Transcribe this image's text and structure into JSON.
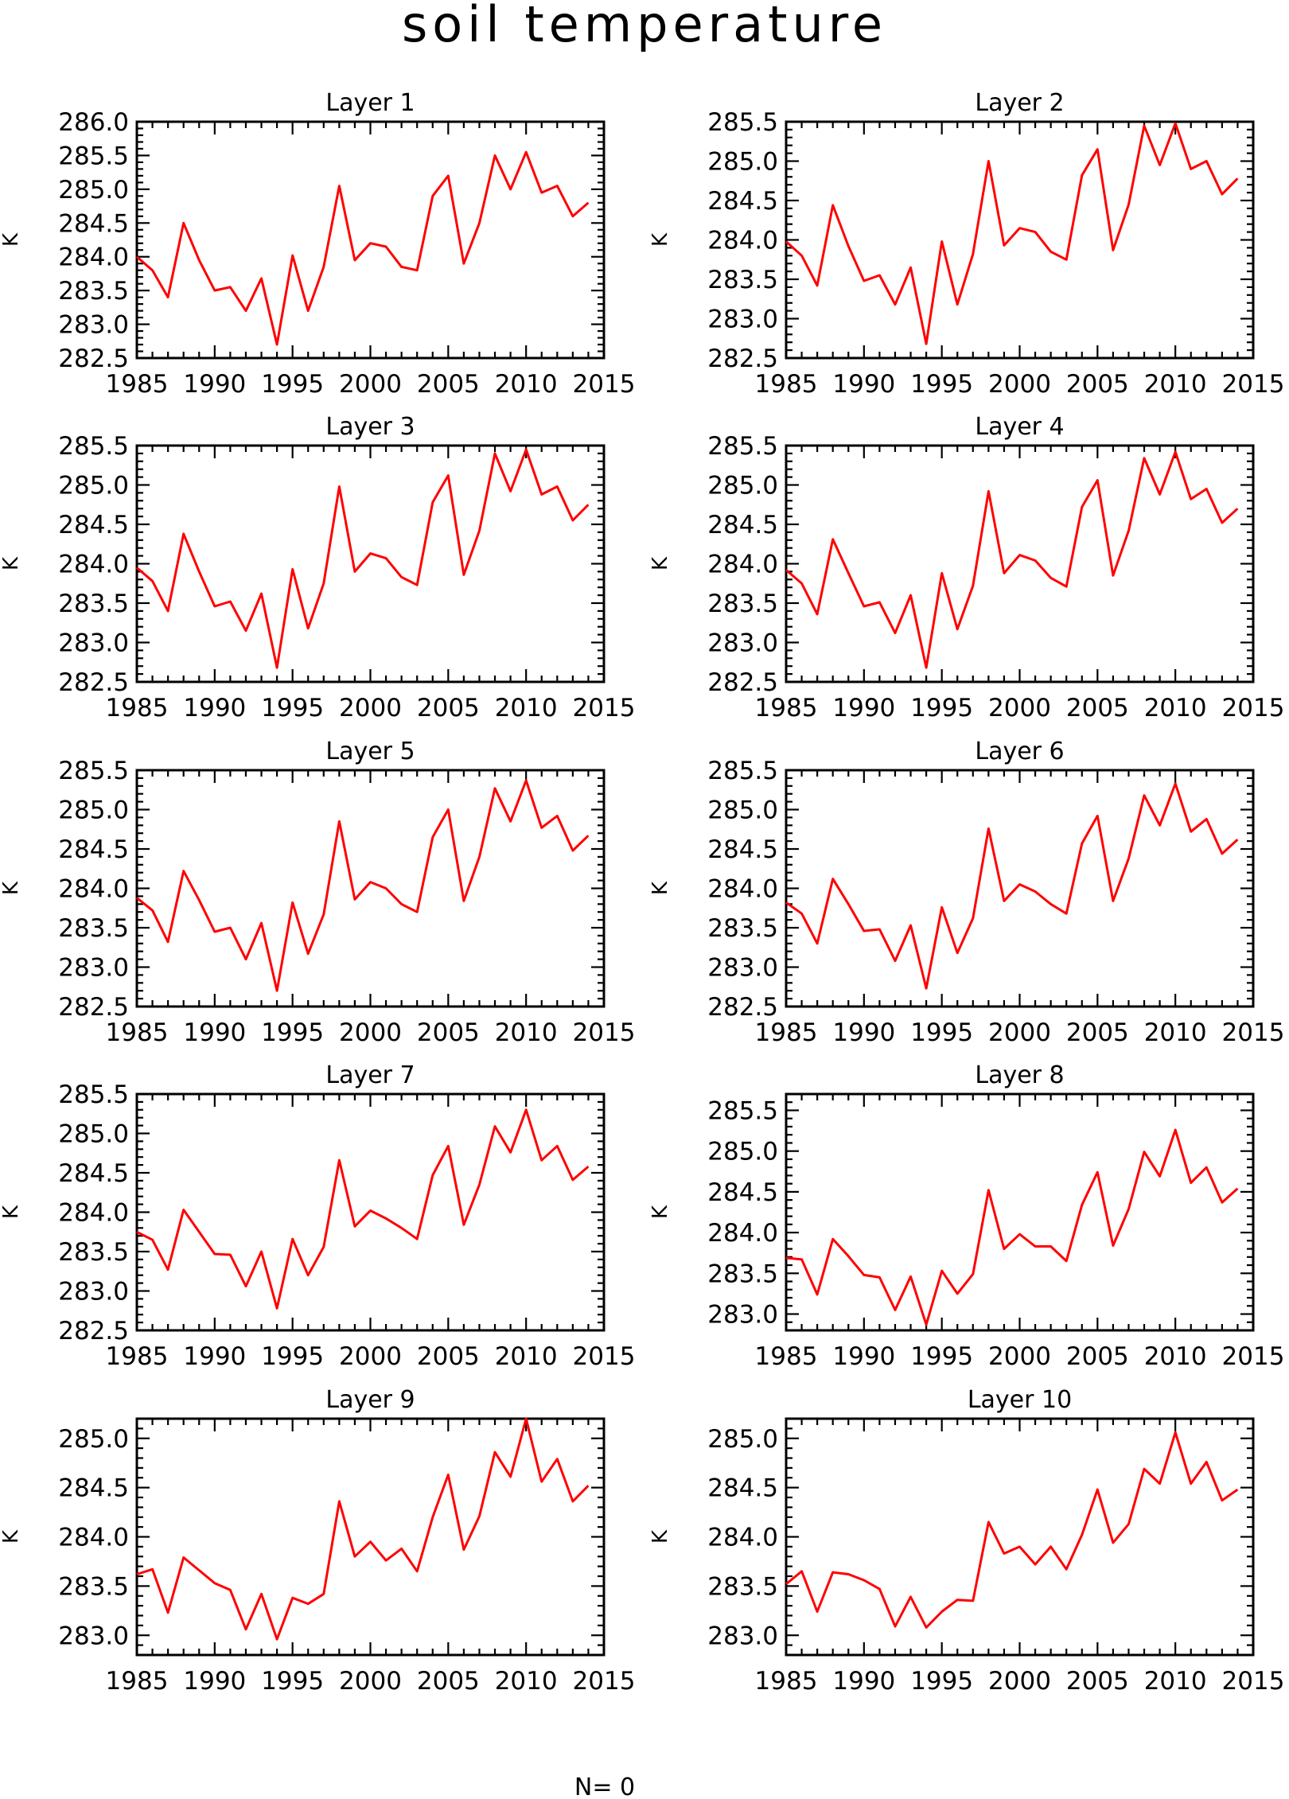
{
  "title": "soil temperature",
  "footer_note": "N= 0",
  "colors": {
    "series": "#ff0000",
    "axes": "#000000",
    "background": "#ffffff"
  },
  "years": [
    1985,
    1986,
    1987,
    1988,
    1989,
    1990,
    1991,
    1992,
    1993,
    1994,
    1995,
    1996,
    1997,
    1998,
    1999,
    2000,
    2001,
    2002,
    2003,
    2004,
    2005,
    2006,
    2007,
    2008,
    2009,
    2010,
    2011,
    2012,
    2013,
    2014
  ],
  "chart_data": [
    {
      "type": "line",
      "title": "Layer 1",
      "ylabel": "K",
      "xlim": [
        1985,
        2015
      ],
      "ylim": [
        282.5,
        286.0
      ],
      "xticks": [
        1985,
        1990,
        1995,
        2000,
        2005,
        2010,
        2015
      ],
      "xtick_labels": [
        "1985",
        "1990",
        "1995",
        "2000",
        "2005",
        "2010",
        "2015"
      ],
      "yticks": [
        282.5,
        283.0,
        283.5,
        284.0,
        284.5,
        285.0,
        285.5,
        286.0
      ],
      "ytick_labels": [
        "282.5",
        "283.0",
        "283.5",
        "284.0",
        "284.5",
        "285.0",
        "285.5",
        "286.0"
      ],
      "values": [
        284.0,
        283.8,
        283.4,
        284.5,
        283.95,
        283.5,
        283.55,
        283.2,
        283.68,
        282.7,
        284.02,
        283.2,
        283.85,
        285.05,
        283.95,
        284.2,
        284.15,
        283.85,
        283.8,
        284.9,
        285.2,
        283.9,
        284.5,
        285.5,
        285.0,
        285.55,
        284.95,
        285.05,
        284.6,
        284.8
      ]
    },
    {
      "type": "line",
      "title": "Layer 2",
      "ylabel": "K",
      "xlim": [
        1985,
        2015
      ],
      "ylim": [
        282.5,
        285.5
      ],
      "xticks": [
        1985,
        1990,
        1995,
        2000,
        2005,
        2010,
        2015
      ],
      "xtick_labels": [
        "1985",
        "1990",
        "1995",
        "2000",
        "2005",
        "2010",
        "2015"
      ],
      "yticks": [
        282.5,
        283.0,
        283.5,
        284.0,
        284.5,
        285.0,
        285.5
      ],
      "ytick_labels": [
        "282.5",
        "283.0",
        "283.5",
        "284.0",
        "284.5",
        "285.0",
        "285.5"
      ],
      "values": [
        283.98,
        283.8,
        283.42,
        284.44,
        283.92,
        283.48,
        283.55,
        283.18,
        283.65,
        282.68,
        283.98,
        283.18,
        283.82,
        285.0,
        283.93,
        284.15,
        284.1,
        283.85,
        283.75,
        284.82,
        285.15,
        283.87,
        284.45,
        285.45,
        284.95,
        285.48,
        284.9,
        285.0,
        284.58,
        284.78
      ]
    },
    {
      "type": "line",
      "title": "Layer 3",
      "ylabel": "K",
      "xlim": [
        1985,
        2015
      ],
      "ylim": [
        282.5,
        285.5
      ],
      "xticks": [
        1985,
        1990,
        1995,
        2000,
        2005,
        2010,
        2015
      ],
      "xtick_labels": [
        "1985",
        "1990",
        "1995",
        "2000",
        "2005",
        "2010",
        "2015"
      ],
      "yticks": [
        282.5,
        283.0,
        283.5,
        284.0,
        284.5,
        285.0,
        285.5
      ],
      "ytick_labels": [
        "282.5",
        "283.0",
        "283.5",
        "284.0",
        "284.5",
        "285.0",
        "285.5"
      ],
      "values": [
        283.95,
        283.78,
        283.4,
        284.38,
        283.9,
        283.46,
        283.52,
        283.15,
        283.62,
        282.68,
        283.93,
        283.18,
        283.75,
        284.98,
        283.9,
        284.13,
        284.07,
        283.83,
        283.73,
        284.78,
        285.12,
        283.86,
        284.42,
        285.4,
        284.92,
        285.45,
        284.88,
        284.98,
        284.55,
        284.75
      ]
    },
    {
      "type": "line",
      "title": "Layer 4",
      "ylabel": "K",
      "xlim": [
        1985,
        2015
      ],
      "ylim": [
        282.5,
        285.5
      ],
      "xticks": [
        1985,
        1990,
        1995,
        2000,
        2005,
        2010,
        2015
      ],
      "xtick_labels": [
        "1985",
        "1990",
        "1995",
        "2000",
        "2005",
        "2010",
        "2015"
      ],
      "yticks": [
        282.5,
        283.0,
        283.5,
        284.0,
        284.5,
        285.0,
        285.5
      ],
      "ytick_labels": [
        "282.5",
        "283.0",
        "283.5",
        "284.0",
        "284.5",
        "285.0",
        "285.5"
      ],
      "values": [
        283.92,
        283.75,
        283.36,
        284.31,
        283.88,
        283.46,
        283.51,
        283.12,
        283.6,
        282.68,
        283.88,
        283.17,
        283.72,
        284.92,
        283.88,
        284.11,
        284.04,
        283.82,
        283.71,
        284.72,
        285.06,
        283.85,
        284.42,
        285.34,
        284.88,
        285.42,
        284.82,
        284.95,
        284.52,
        284.7
      ]
    },
    {
      "type": "line",
      "title": "Layer 5",
      "ylabel": "K",
      "xlim": [
        1985,
        2015
      ],
      "ylim": [
        282.5,
        285.5
      ],
      "xticks": [
        1985,
        1990,
        1995,
        2000,
        2005,
        2010,
        2015
      ],
      "xtick_labels": [
        "1985",
        "1990",
        "1995",
        "2000",
        "2005",
        "2010",
        "2015"
      ],
      "yticks": [
        282.5,
        283.0,
        283.5,
        284.0,
        284.5,
        285.0,
        285.5
      ],
      "ytick_labels": [
        "282.5",
        "283.0",
        "283.5",
        "284.0",
        "284.5",
        "285.0",
        "285.5"
      ],
      "values": [
        283.88,
        283.72,
        283.32,
        284.22,
        283.85,
        283.45,
        283.5,
        283.1,
        283.56,
        282.7,
        283.82,
        283.17,
        283.67,
        284.85,
        283.86,
        284.08,
        284.0,
        283.8,
        283.7,
        284.65,
        285.0,
        283.84,
        284.4,
        285.27,
        284.85,
        285.37,
        284.77,
        284.92,
        284.48,
        284.67
      ]
    },
    {
      "type": "line",
      "title": "Layer 6",
      "ylabel": "K",
      "xlim": [
        1985,
        2015
      ],
      "ylim": [
        282.5,
        285.5
      ],
      "xticks": [
        1985,
        1990,
        1995,
        2000,
        2005,
        2010,
        2015
      ],
      "xtick_labels": [
        "1985",
        "1990",
        "1995",
        "2000",
        "2005",
        "2010",
        "2015"
      ],
      "yticks": [
        282.5,
        283.0,
        283.5,
        284.0,
        284.5,
        285.0,
        285.5
      ],
      "ytick_labels": [
        "282.5",
        "283.0",
        "283.5",
        "284.0",
        "284.5",
        "285.0",
        "285.5"
      ],
      "values": [
        283.82,
        283.68,
        283.3,
        284.12,
        283.8,
        283.46,
        283.48,
        283.08,
        283.53,
        282.73,
        283.76,
        283.18,
        283.62,
        284.76,
        283.84,
        284.05,
        283.96,
        283.8,
        283.68,
        284.57,
        284.92,
        283.84,
        284.38,
        285.18,
        284.8,
        285.33,
        284.72,
        284.88,
        284.44,
        284.62
      ]
    },
    {
      "type": "line",
      "title": "Layer 7",
      "ylabel": "K",
      "xlim": [
        1985,
        2015
      ],
      "ylim": [
        282.5,
        285.5
      ],
      "xticks": [
        1985,
        1990,
        1995,
        2000,
        2005,
        2010,
        2015
      ],
      "xtick_labels": [
        "1985",
        "1990",
        "1995",
        "2000",
        "2005",
        "2010",
        "2015"
      ],
      "yticks": [
        282.5,
        283.0,
        283.5,
        284.0,
        284.5,
        285.0,
        285.5
      ],
      "ytick_labels": [
        "282.5",
        "283.0",
        "283.5",
        "284.0",
        "284.5",
        "285.0",
        "285.5"
      ],
      "values": [
        283.75,
        283.65,
        283.27,
        284.03,
        283.75,
        283.47,
        283.46,
        283.06,
        283.5,
        282.78,
        283.66,
        283.2,
        283.56,
        284.66,
        283.82,
        284.02,
        283.92,
        283.8,
        283.66,
        284.47,
        284.84,
        283.84,
        284.35,
        285.09,
        284.76,
        285.3,
        284.66,
        284.84,
        284.41,
        284.58
      ]
    },
    {
      "type": "line",
      "title": "Layer 8",
      "ylabel": "K",
      "xlim": [
        1985,
        2015
      ],
      "ylim": [
        282.8,
        285.7
      ],
      "xticks": [
        1985,
        1990,
        1995,
        2000,
        2005,
        2010,
        2015
      ],
      "xtick_labels": [
        "1985",
        "1990",
        "1995",
        "2000",
        "2005",
        "2010",
        "2015"
      ],
      "yticks": [
        283.0,
        283.5,
        284.0,
        284.5,
        285.0,
        285.5
      ],
      "ytick_labels": [
        "283.0",
        "283.5",
        "284.0",
        "284.5",
        "285.0",
        "285.5"
      ],
      "values": [
        283.69,
        283.67,
        283.24,
        283.92,
        283.71,
        283.48,
        283.45,
        283.05,
        283.46,
        282.87,
        283.53,
        283.25,
        283.49,
        284.52,
        283.8,
        283.98,
        283.83,
        283.83,
        283.65,
        284.34,
        284.74,
        283.84,
        284.29,
        284.99,
        284.69,
        285.26,
        284.61,
        284.8,
        284.37,
        284.54
      ]
    },
    {
      "type": "line",
      "title": "Layer 9",
      "ylabel": "K",
      "xlim": [
        1985,
        2015
      ],
      "ylim": [
        282.8,
        285.2
      ],
      "xticks": [
        1985,
        1990,
        1995,
        2000,
        2005,
        2010,
        2015
      ],
      "xtick_labels": [
        "1985",
        "1990",
        "1995",
        "2000",
        "2005",
        "2010",
        "2015"
      ],
      "yticks": [
        283.0,
        283.5,
        284.0,
        284.5,
        285.0
      ],
      "ytick_labels": [
        "283.0",
        "283.5",
        "284.0",
        "284.5",
        "285.0"
      ],
      "values": [
        283.62,
        283.67,
        283.23,
        283.79,
        283.66,
        283.53,
        283.46,
        283.06,
        283.42,
        282.96,
        283.38,
        283.32,
        283.42,
        284.36,
        283.8,
        283.95,
        283.76,
        283.88,
        283.65,
        284.2,
        284.63,
        283.87,
        284.21,
        284.86,
        284.61,
        285.2,
        284.56,
        284.79,
        284.36,
        284.52
      ]
    },
    {
      "type": "line",
      "title": "Layer 10",
      "ylabel": "K",
      "xlim": [
        1985,
        2015
      ],
      "ylim": [
        282.8,
        285.2
      ],
      "xticks": [
        1985,
        1990,
        1995,
        2000,
        2005,
        2010,
        2015
      ],
      "xtick_labels": [
        "1985",
        "1990",
        "1995",
        "2000",
        "2005",
        "2010",
        "2015"
      ],
      "yticks": [
        283.0,
        283.5,
        284.0,
        284.5,
        285.0
      ],
      "ytick_labels": [
        "283.0",
        "283.5",
        "284.0",
        "284.5",
        "285.0"
      ],
      "values": [
        283.52,
        283.65,
        283.24,
        283.64,
        283.62,
        283.56,
        283.47,
        283.09,
        283.39,
        283.08,
        283.24,
        283.36,
        283.35,
        284.15,
        283.83,
        283.9,
        283.72,
        283.9,
        283.67,
        284.02,
        284.48,
        283.94,
        284.13,
        284.69,
        284.54,
        285.06,
        284.54,
        284.76,
        284.37,
        284.48
      ]
    }
  ]
}
